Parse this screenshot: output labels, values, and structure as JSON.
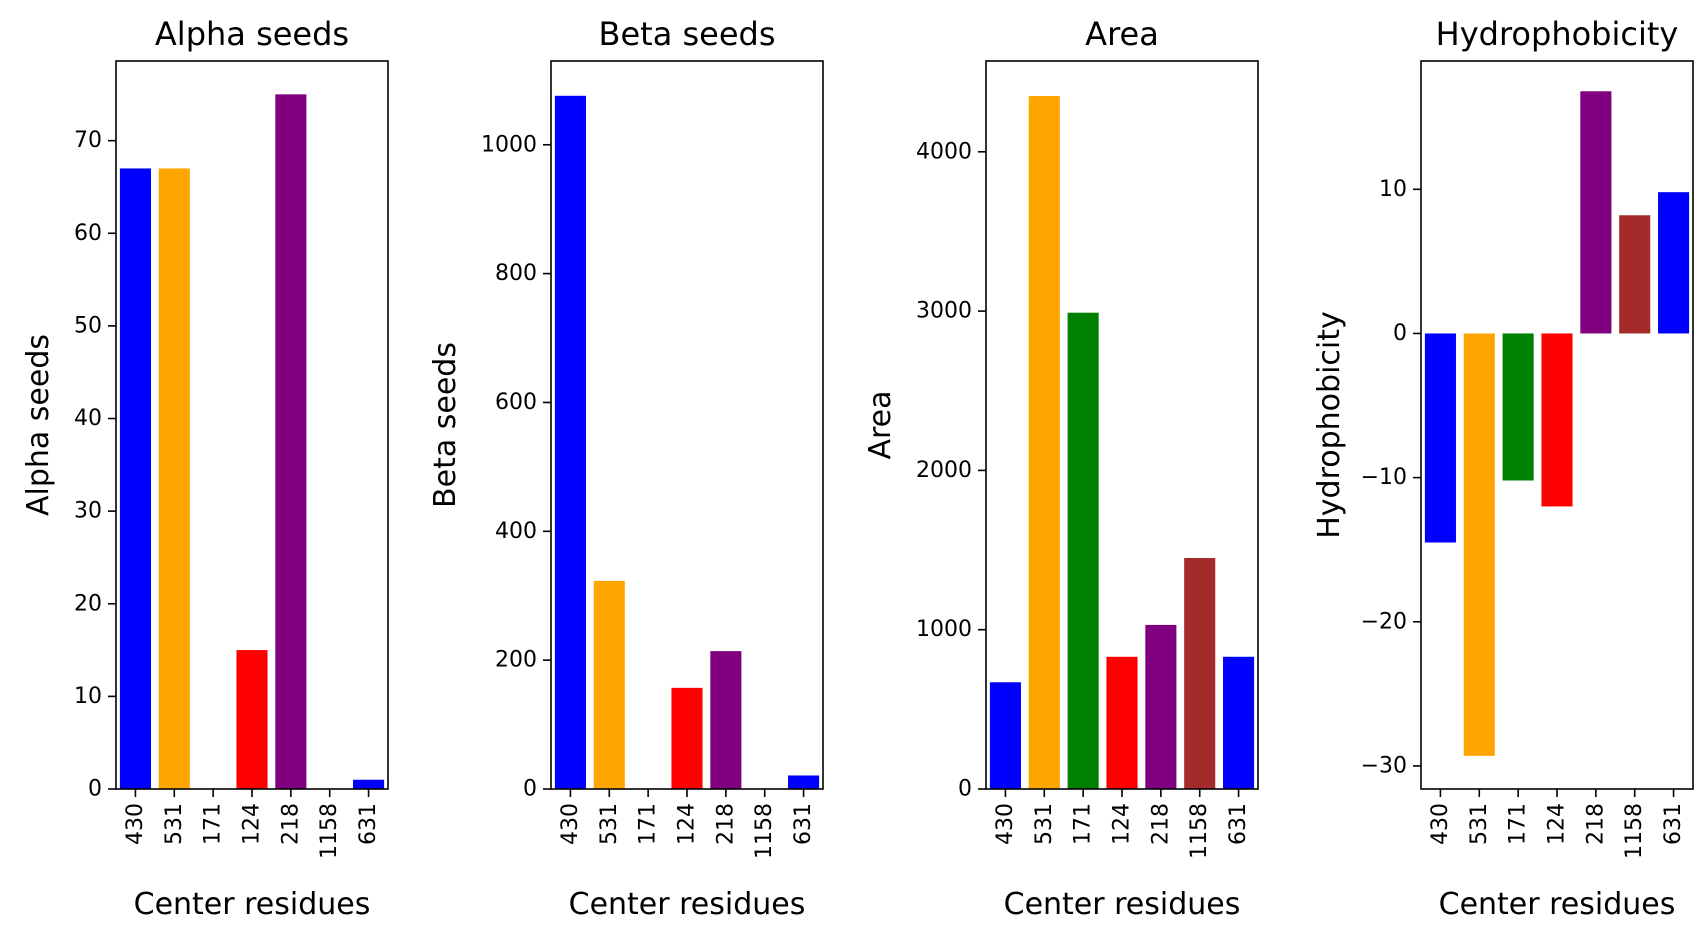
{
  "chart_data": [
    {
      "type": "bar",
      "title": "Alpha seeds",
      "xlabel": "Center residues",
      "ylabel": "Alpha seeds",
      "categories": [
        "430",
        "531",
        "171",
        "124",
        "218",
        "1158",
        "631"
      ],
      "values": [
        67,
        67,
        0,
        15,
        75,
        0,
        1
      ],
      "colors": [
        "#0000ff",
        "#ffa500",
        "#008000",
        "#ff0000",
        "#800080",
        "#a52a2a",
        "#0000ff"
      ],
      "ylim": [
        0,
        78.6
      ],
      "yticks": [
        0,
        10,
        20,
        30,
        40,
        50,
        60,
        70
      ],
      "ytick_labels": [
        "0",
        "10",
        "20",
        "30",
        "40",
        "50",
        "60",
        "70"
      ],
      "grid": false
    },
    {
      "type": "bar",
      "title": "Beta seeds",
      "xlabel": "Center residues",
      "ylabel": "Beta seeds",
      "categories": [
        "430",
        "531",
        "171",
        "124",
        "218",
        "1158",
        "631"
      ],
      "values": [
        1076,
        323,
        0,
        157,
        214,
        0,
        21
      ],
      "colors": [
        "#0000ff",
        "#ffa500",
        "#008000",
        "#ff0000",
        "#800080",
        "#a52a2a",
        "#0000ff"
      ],
      "ylim": [
        0,
        1130
      ],
      "yticks": [
        0,
        200,
        400,
        600,
        800,
        1000
      ],
      "ytick_labels": [
        "0",
        "200",
        "400",
        "600",
        "800",
        "1000"
      ],
      "grid": false
    },
    {
      "type": "bar",
      "title": "Area",
      "xlabel": "Center residues",
      "ylabel": "Area",
      "categories": [
        "430",
        "531",
        "171",
        "124",
        "218",
        "1158",
        "631"
      ],
      "values": [
        670,
        4350,
        2990,
        830,
        1030,
        1450,
        830
      ],
      "colors": [
        "#0000ff",
        "#ffa500",
        "#008000",
        "#ff0000",
        "#800080",
        "#a52a2a",
        "#0000ff"
      ],
      "ylim": [
        0,
        4570
      ],
      "yticks": [
        0,
        1000,
        2000,
        3000,
        4000
      ],
      "ytick_labels": [
        "0",
        "1000",
        "2000",
        "3000",
        "4000"
      ],
      "grid": false
    },
    {
      "type": "bar",
      "title": "Hydrophobicity",
      "xlabel": "Center residues",
      "ylabel": "Hydrophobicity",
      "categories": [
        "430",
        "531",
        "171",
        "124",
        "218",
        "1158",
        "631"
      ],
      "values": [
        -14.5,
        -29.3,
        -10.2,
        -12.0,
        16.8,
        8.2,
        9.8
      ],
      "colors": [
        "#0000ff",
        "#ffa500",
        "#008000",
        "#ff0000",
        "#800080",
        "#a52a2a",
        "#0000ff"
      ],
      "ylim": [
        -31.6,
        18.9
      ],
      "yticks": [
        -30,
        -20,
        -10,
        0,
        10
      ],
      "ytick_labels": [
        "−30",
        "−20",
        "−10",
        "0",
        "10"
      ],
      "grid": false
    }
  ]
}
